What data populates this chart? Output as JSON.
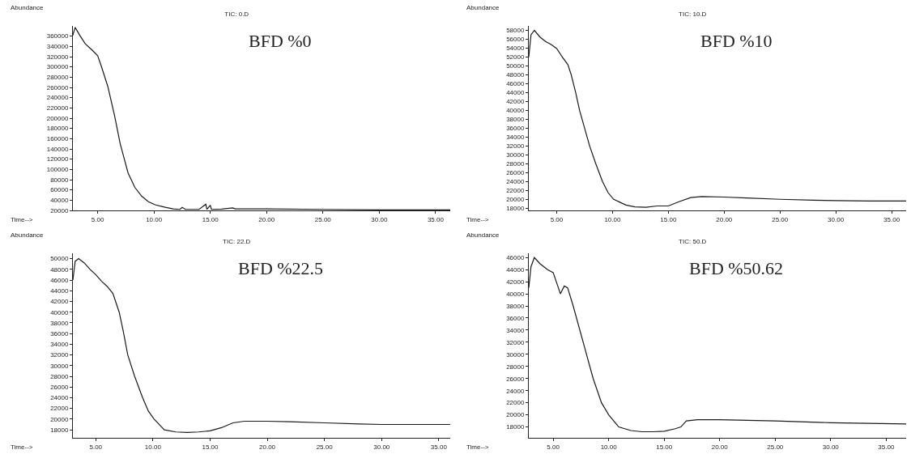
{
  "chart_data": [
    {
      "type": "line",
      "title": "TIC: 0.D",
      "annotations": [
        "BFD %0"
      ],
      "xlabel": "Time-->",
      "ylabel": "Abundance",
      "grid": false,
      "xlim": [
        2.8,
        36.3
      ],
      "xticks": [
        {
          "value": 5,
          "label": "5.00"
        },
        {
          "value": 10,
          "label": "10.00"
        },
        {
          "value": 15,
          "label": "15.00"
        },
        {
          "value": 20,
          "label": "20.00"
        },
        {
          "value": 25,
          "label": "25.00"
        },
        {
          "value": 30,
          "label": "30.00"
        },
        {
          "value": 35,
          "label": "35.00"
        }
      ],
      "ylim": [
        20000,
        380000
      ],
      "yticks": [
        20000,
        40000,
        60000,
        80000,
        100000,
        120000,
        140000,
        160000,
        180000,
        200000,
        220000,
        240000,
        260000,
        280000,
        300000,
        320000,
        340000,
        360000
      ],
      "series": [
        {
          "color": "#1a1a1a",
          "x": [
            2.8,
            3.0,
            3.4,
            3.9,
            4.5,
            5.0,
            5.3,
            5.9,
            6.5,
            7.0,
            7.7,
            8.3,
            8.9,
            9.5,
            10.1,
            11.0,
            11.7,
            12.3,
            12.5,
            12.8,
            14.0,
            14.6,
            14.7,
            15.0,
            15.1,
            16.0,
            17.0,
            17.2,
            20,
            25,
            30,
            36.3
          ],
          "values": [
            362000,
            377000,
            362000,
            345000,
            333000,
            322000,
            303000,
            262000,
            205000,
            150000,
            93000,
            65000,
            48000,
            37000,
            31000,
            26000,
            23000,
            22000,
            26000,
            22000,
            22000,
            32000,
            22000,
            30000,
            22000,
            22500,
            25000,
            23000,
            23000,
            22000,
            21000,
            21000
          ]
        }
      ]
    },
    {
      "type": "line",
      "title": "TIC: 10.D",
      "annotations": [
        "BFD %10"
      ],
      "xlabel": "Time-->",
      "ylabel": "Abundance",
      "grid": false,
      "xlim": [
        2.5,
        36.3
      ],
      "xticks": [
        {
          "value": 5,
          "label": "5.00"
        },
        {
          "value": 10,
          "label": "10.00"
        },
        {
          "value": 15,
          "label": "15.00"
        },
        {
          "value": 20,
          "label": "20.00"
        },
        {
          "value": 25,
          "label": "25.00"
        },
        {
          "value": 30,
          "label": "30.00"
        },
        {
          "value": 35,
          "label": "35.00"
        }
      ],
      "ylim": [
        17500,
        59000
      ],
      "yticks": [
        18000,
        20000,
        22000,
        24000,
        26000,
        28000,
        30000,
        32000,
        34000,
        36000,
        38000,
        40000,
        42000,
        44000,
        46000,
        48000,
        50000,
        52000,
        54000,
        56000,
        58000
      ],
      "series": [
        {
          "color": "#1a1a1a",
          "x": [
            2.5,
            2.7,
            3.0,
            3.5,
            4.0,
            4.5,
            5.0,
            5.5,
            6.0,
            6.3,
            6.7,
            7.05,
            7.5,
            7.95,
            8.5,
            9.1,
            9.6,
            10.1,
            11.2,
            12,
            13,
            14,
            15,
            16,
            17,
            18,
            20,
            22,
            25,
            28,
            30,
            33,
            36.3
          ],
          "values": [
            52000,
            57000,
            58000,
            56500,
            55500,
            54800,
            53900,
            52000,
            50300,
            48000,
            44000,
            40000,
            36000,
            32000,
            28000,
            24000,
            21500,
            20000,
            18700,
            18300,
            18200,
            18500,
            18500,
            19500,
            20400,
            20600,
            20500,
            20300,
            20000,
            19800,
            19700,
            19600,
            19600
          ]
        }
      ]
    },
    {
      "type": "line",
      "title": "TIC: 22.D",
      "annotations": [
        "BFD %22.5"
      ],
      "xlabel": "Time-->",
      "ylabel": "Abundance",
      "grid": false,
      "xlim": [
        3.0,
        36.0
      ],
      "xticks": [
        {
          "value": 5,
          "label": "5.00"
        },
        {
          "value": 10,
          "label": "10.00"
        },
        {
          "value": 15,
          "label": "15.00"
        },
        {
          "value": 20,
          "label": "20.00"
        },
        {
          "value": 25,
          "label": "25.00"
        },
        {
          "value": 30,
          "label": "30.00"
        },
        {
          "value": 35,
          "label": "35.00"
        }
      ],
      "ylim": [
        16500,
        51000
      ],
      "yticks": [
        18000,
        20000,
        22000,
        24000,
        26000,
        28000,
        30000,
        32000,
        34000,
        36000,
        38000,
        40000,
        42000,
        44000,
        46000,
        48000,
        50000
      ],
      "series": [
        {
          "color": "#1a1a1a",
          "x": [
            3.0,
            3.2,
            3.5,
            4.0,
            4.5,
            5.0,
            5.5,
            6.0,
            6.5,
            7.05,
            7.4,
            7.8,
            8.4,
            9.1,
            9.6,
            10.1,
            11.0,
            12,
            13,
            14,
            15,
            16,
            17,
            18,
            20,
            22,
            25,
            28,
            30,
            33,
            36.0
          ],
          "values": [
            46000,
            49500,
            50000,
            49200,
            48000,
            47000,
            45800,
            44800,
            43500,
            40000,
            36500,
            32000,
            28000,
            24000,
            21500,
            20000,
            18000,
            17600,
            17500,
            17600,
            17800,
            18400,
            19300,
            19600,
            19600,
            19500,
            19300,
            19100,
            19000,
            19000,
            19000
          ]
        }
      ]
    },
    {
      "type": "line",
      "title": "TIC: 50.D",
      "annotations": [
        "BFD %50.62"
      ],
      "xlabel": "Time-->",
      "ylabel": "Abundance",
      "grid": false,
      "xlim": [
        2.8,
        36.8
      ],
      "xticks": [
        {
          "value": 5,
          "label": "5.00"
        },
        {
          "value": 10,
          "label": "10.00"
        },
        {
          "value": 15,
          "label": "15.00"
        },
        {
          "value": 20,
          "label": "20.00"
        },
        {
          "value": 25,
          "label": "25.00"
        },
        {
          "value": 30,
          "label": "30.00"
        },
        {
          "value": 35,
          "label": "35.00"
        }
      ],
      "ylim": [
        16200,
        46700
      ],
      "yticks": [
        18000,
        20000,
        22000,
        24000,
        26000,
        28000,
        30000,
        32000,
        34000,
        36000,
        38000,
        40000,
        42000,
        44000,
        46000
      ],
      "series": [
        {
          "color": "#1a1a1a",
          "x": [
            2.8,
            3.0,
            3.3,
            3.8,
            4.5,
            5.0,
            5.65,
            6.0,
            6.3,
            6.8,
            7.7,
            8.6,
            9.35,
            10.0,
            10.9,
            12,
            13,
            14,
            15,
            16,
            16.5,
            17,
            18,
            20,
            25,
            30,
            36.8
          ],
          "values": [
            41000,
            44500,
            46000,
            45000,
            44000,
            43500,
            40000,
            41300,
            41000,
            38000,
            32000,
            26000,
            22000,
            20000,
            18000,
            17400,
            17200,
            17200,
            17300,
            17700,
            18000,
            19000,
            19200,
            19200,
            19000,
            18700,
            18500
          ]
        }
      ]
    }
  ]
}
